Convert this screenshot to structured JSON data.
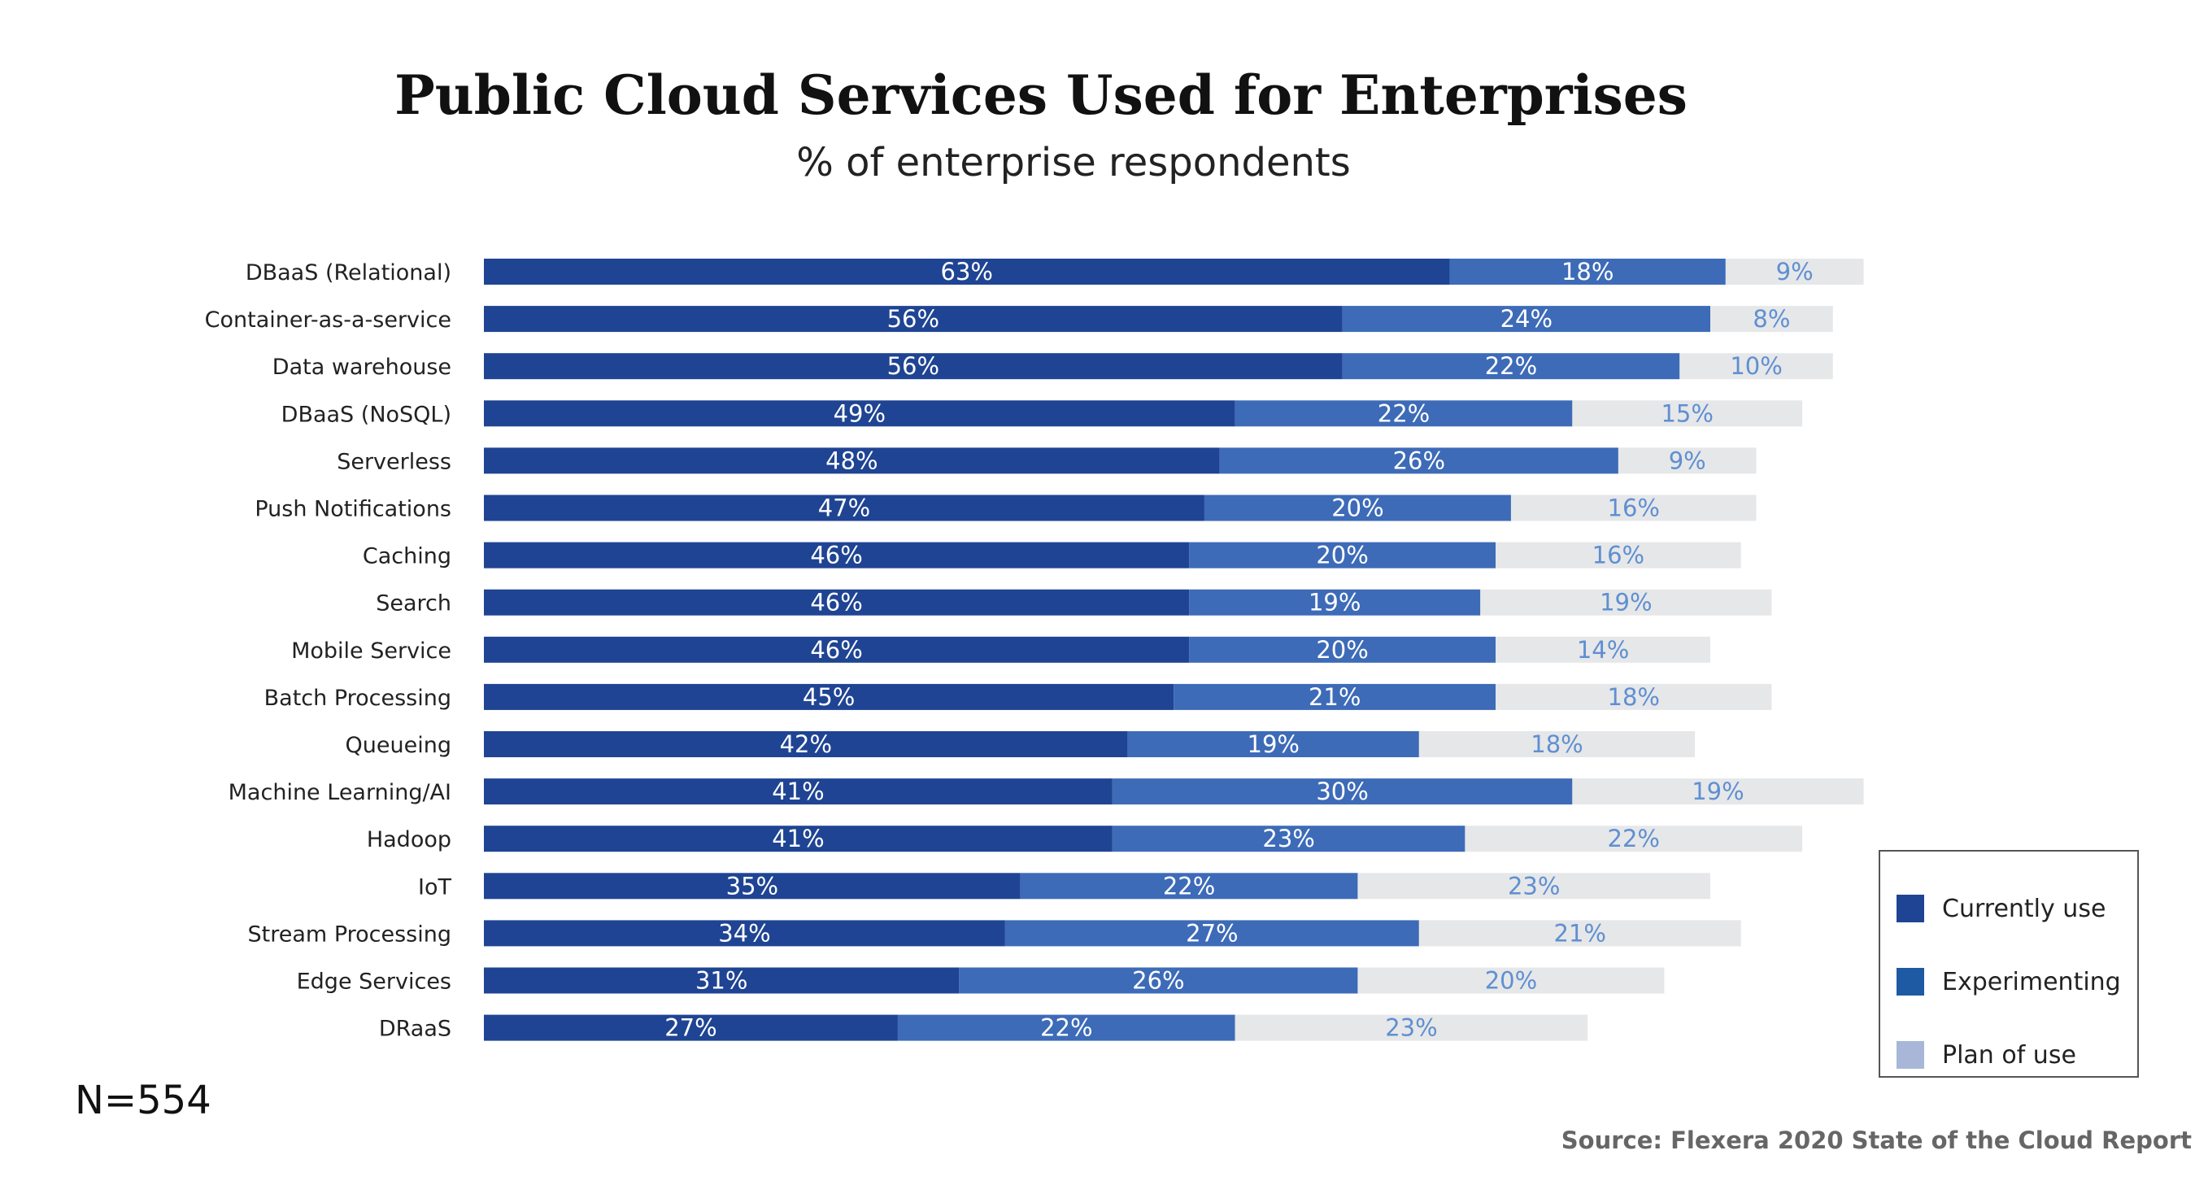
{
  "page": {
    "n_label": "N=554",
    "source": "Source: Flexera 2020 State of the Cloud Report"
  },
  "colors": {
    "currently_use": "#1f4493",
    "experimenting": "#3d6bb8",
    "plan_of_use": "#e6e7e9",
    "plan_label": "#5f8fd1",
    "legend_plan_swatch": "#a8b6d8",
    "legend_experimenting_swatch": "#1e5aa3"
  },
  "chart_data": {
    "type": "bar",
    "orientation": "horizontal",
    "stacked": true,
    "title": "Public Cloud Services Used for Enterprises",
    "subtitle": "% of enterprise respondents",
    "categories": [
      "DBaaS (Relational)",
      "Container-as-a-service",
      "Data warehouse",
      "DBaaS (NoSQL)",
      "Serverless",
      "Push Notifications",
      "Caching",
      "Search",
      "Mobile Service",
      "Batch Processing",
      "Queueing",
      "Machine Learning/AI",
      "Hadoop",
      "IoT",
      "Stream Processing",
      "Edge Services",
      "DRaaS"
    ],
    "series": [
      {
        "name": "Currently use",
        "values": [
          63,
          56,
          56,
          49,
          48,
          47,
          46,
          46,
          46,
          45,
          42,
          41,
          41,
          35,
          34,
          31,
          27
        ]
      },
      {
        "name": "Experimenting",
        "values": [
          18,
          24,
          22,
          22,
          26,
          20,
          20,
          19,
          20,
          21,
          19,
          30,
          23,
          22,
          27,
          26,
          22
        ]
      },
      {
        "name": "Plan of use",
        "values": [
          9,
          8,
          10,
          15,
          9,
          16,
          16,
          19,
          14,
          18,
          18,
          19,
          22,
          23,
          21,
          20,
          23
        ]
      }
    ],
    "value_suffix": "%",
    "legend_position": "bottom-right",
    "grid": false
  }
}
